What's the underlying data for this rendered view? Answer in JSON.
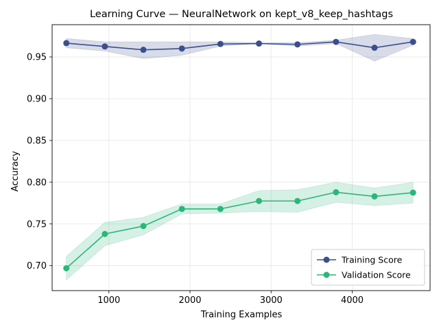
{
  "chart_data": {
    "type": "line",
    "title": "Learning Curve — NeuralNetwork on kept_v8_keep_hashtags",
    "xlabel": "Training Examples",
    "ylabel": "Accuracy",
    "xlim": [
      300,
      4960
    ],
    "ylim": [
      0.6702,
      0.9886
    ],
    "xticks": [
      1000,
      2000,
      3000,
      4000
    ],
    "yticks": [
      0.7,
      0.75,
      0.8,
      0.85,
      0.9,
      0.95
    ],
    "ytick_labels": [
      "0.70",
      "0.75",
      "0.80",
      "0.85",
      "0.90",
      "0.95"
    ],
    "grid": true,
    "legend_position": "lower-right",
    "x": [
      475,
      950,
      1425,
      1900,
      2375,
      2850,
      3325,
      3800,
      4275,
      4750
    ],
    "series": [
      {
        "name": "Training Score",
        "color": "#3b4f8c",
        "band_color": "#3b4f8c",
        "values": [
          0.9665,
          0.9625,
          0.9585,
          0.96,
          0.9655,
          0.966,
          0.965,
          0.968,
          0.961,
          0.968
        ],
        "lower": [
          0.961,
          0.957,
          0.948,
          0.952,
          0.963,
          0.966,
          0.963,
          0.966,
          0.945,
          0.964
        ],
        "upper": [
          0.972,
          0.968,
          0.968,
          0.968,
          0.968,
          0.967,
          0.967,
          0.97,
          0.977,
          0.972
        ]
      },
      {
        "name": "Validation Score",
        "color": "#2db67a",
        "band_color": "#2db67a",
        "values": [
          0.697,
          0.738,
          0.7475,
          0.768,
          0.768,
          0.7775,
          0.7775,
          0.788,
          0.783,
          0.7875
        ],
        "lower": [
          0.683,
          0.724,
          0.737,
          0.762,
          0.763,
          0.765,
          0.764,
          0.776,
          0.772,
          0.775
        ],
        "upper": [
          0.711,
          0.752,
          0.758,
          0.774,
          0.774,
          0.79,
          0.791,
          0.8,
          0.793,
          0.8
        ]
      }
    ]
  }
}
